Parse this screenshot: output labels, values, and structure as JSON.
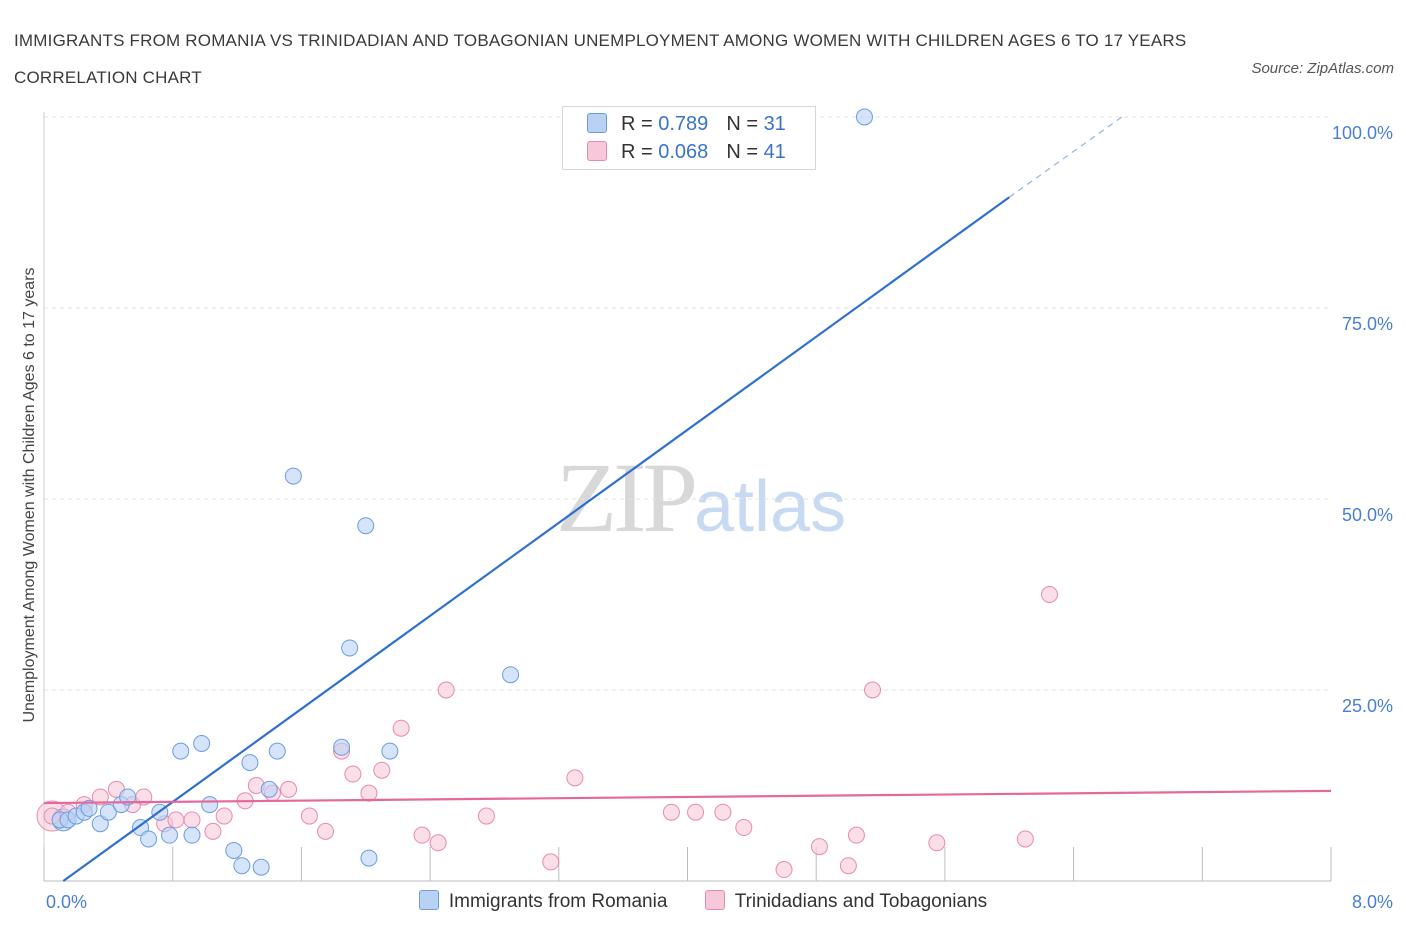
{
  "title": "IMMIGRANTS FROM ROMANIA VS TRINIDADIAN AND TOBAGONIAN UNEMPLOYMENT AMONG WOMEN WITH CHILDREN AGES 6 TO 17 YEARS CORRELATION CHART",
  "source": "Source: ZipAtlas.com",
  "watermark": {
    "zip": "ZIP",
    "atlas": "atlas"
  },
  "legend": {
    "romania": {
      "r_label": "R =",
      "r_value": "0.789",
      "n_label": "N =",
      "n_value": "31"
    },
    "trinidad": {
      "r_label": "R =",
      "r_value": "0.068",
      "n_label": "N =",
      "n_value": "41"
    }
  },
  "chart_data": {
    "type": "scatter",
    "title": "IMMIGRANTS FROM ROMANIA VS TRINIDADIAN AND TOBAGONIAN UNEMPLOYMENT AMONG WOMEN WITH CHILDREN AGES 6 TO 17 YEARS CORRELATION CHART",
    "ylabel": "Unemployment Among Women with Children Ages 6 to 17 years",
    "xlabel": "",
    "xlim": [
      0,
      8
    ],
    "ylim": [
      0,
      100
    ],
    "x_tick_labels": [
      "0.0%",
      "8.0%"
    ],
    "y_ticks": [
      25,
      50,
      75,
      100
    ],
    "y_tick_labels": [
      "25.0%",
      "50.0%",
      "75.0%",
      "100.0%"
    ],
    "grid": true,
    "legend_position": "top-center",
    "series": [
      {
        "name": "Immigrants from Romania",
        "color": "#6b9de0",
        "fill": "#b9d2f3",
        "points": [
          [
            0.1,
            8.0
          ],
          [
            0.15,
            8.0
          ],
          [
            0.2,
            8.5
          ],
          [
            0.25,
            9.0
          ],
          [
            0.35,
            7.5
          ],
          [
            0.4,
            9.0
          ],
          [
            0.48,
            10.0
          ],
          [
            0.52,
            11.0
          ],
          [
            0.6,
            7.0
          ],
          [
            0.65,
            5.5
          ],
          [
            0.72,
            9.0
          ],
          [
            0.78,
            6.0
          ],
          [
            0.85,
            17.0
          ],
          [
            0.92,
            6.0
          ],
          [
            0.98,
            18.0
          ],
          [
            1.03,
            10.0
          ],
          [
            1.18,
            4.0
          ],
          [
            1.23,
            2.0
          ],
          [
            1.28,
            15.5
          ],
          [
            1.35,
            1.8
          ],
          [
            1.4,
            12.0
          ],
          [
            1.45,
            17.0
          ],
          [
            1.55,
            53.0
          ],
          [
            1.85,
            17.5
          ],
          [
            1.9,
            30.5
          ],
          [
            2.0,
            46.5
          ],
          [
            2.02,
            3.0
          ],
          [
            2.15,
            17.0
          ],
          [
            2.9,
            27.0
          ],
          [
            5.1,
            100.0
          ],
          [
            0.28,
            9.5
          ]
        ],
        "trend": {
          "x": [
            0.12,
            6.0
          ],
          "y": [
            0.0,
            89.5
          ],
          "dashed_extension": {
            "x": [
              6.0,
              6.7
            ],
            "y": [
              89.5,
              100.0
            ]
          }
        }
      },
      {
        "name": "Trinidadians and Tobagonians",
        "color": "#e88ab0",
        "fill": "#f7c8d9",
        "points": [
          [
            0.05,
            8.5
          ],
          [
            0.15,
            9.0
          ],
          [
            0.25,
            10.0
          ],
          [
            0.35,
            11.0
          ],
          [
            0.45,
            12.0
          ],
          [
            0.55,
            10.0
          ],
          [
            0.62,
            11.0
          ],
          [
            0.75,
            7.5
          ],
          [
            0.82,
            8.0
          ],
          [
            0.92,
            8.0
          ],
          [
            1.05,
            6.5
          ],
          [
            1.12,
            8.5
          ],
          [
            1.25,
            10.5
          ],
          [
            1.32,
            12.5
          ],
          [
            1.42,
            11.5
          ],
          [
            1.52,
            12.0
          ],
          [
            1.65,
            8.5
          ],
          [
            1.75,
            6.5
          ],
          [
            1.85,
            17.0
          ],
          [
            1.92,
            14.0
          ],
          [
            2.02,
            11.5
          ],
          [
            2.1,
            14.5
          ],
          [
            2.22,
            20.0
          ],
          [
            2.35,
            6.0
          ],
          [
            2.45,
            5.0
          ],
          [
            2.5,
            25.0
          ],
          [
            2.75,
            8.5
          ],
          [
            3.15,
            2.5
          ],
          [
            3.3,
            13.5
          ],
          [
            3.9,
            9.0
          ],
          [
            4.05,
            9.0
          ],
          [
            4.22,
            9.0
          ],
          [
            4.35,
            7.0
          ],
          [
            4.6,
            1.5
          ],
          [
            4.82,
            4.5
          ],
          [
            5.0,
            2.0
          ],
          [
            5.05,
            6.0
          ],
          [
            5.15,
            25.0
          ],
          [
            5.55,
            5.0
          ],
          [
            6.1,
            5.5
          ],
          [
            6.25,
            37.5
          ]
        ],
        "trend": {
          "x": [
            0.0,
            8.0
          ],
          "y": [
            10.2,
            11.8
          ]
        }
      }
    ]
  }
}
